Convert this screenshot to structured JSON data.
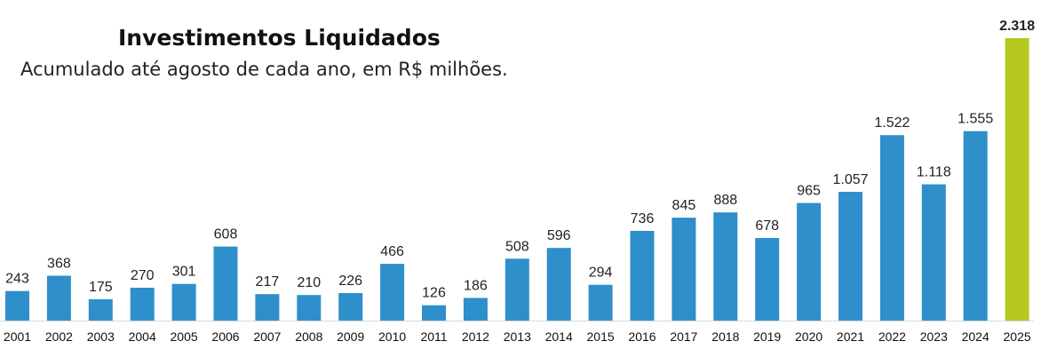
{
  "chart_data": {
    "type": "bar",
    "title": "Investimentos Liquidados",
    "subtitle": "Acumulado até agosto de cada ano, em R$ milhões.",
    "xlabel": "",
    "ylabel": "",
    "ylim": [
      0,
      2318
    ],
    "grid": false,
    "legend": "none",
    "categories": [
      "2001",
      "2002",
      "2003",
      "2004",
      "2005",
      "2006",
      "2007",
      "2008",
      "2009",
      "2010",
      "2011",
      "2012",
      "2013",
      "2014",
      "2015",
      "2016",
      "2017",
      "2018",
      "2019",
      "2020",
      "2021",
      "2022",
      "2023",
      "2024",
      "2025"
    ],
    "values": [
      243,
      368,
      175,
      270,
      301,
      608,
      217,
      210,
      226,
      466,
      126,
      186,
      508,
      596,
      294,
      736,
      845,
      888,
      678,
      965,
      1057,
      1522,
      1118,
      1555,
      2318
    ],
    "value_labels": [
      "243",
      "368",
      "175",
      "270",
      "301",
      "608",
      "217",
      "210",
      "226",
      "466",
      "126",
      "186",
      "508",
      "596",
      "294",
      "736",
      "845",
      "888",
      "678",
      "965",
      "1.057",
      "1.522",
      "1.118",
      "1.555",
      "2.318"
    ],
    "highlight_index": 24,
    "colors": {
      "bar": "#2e8fca",
      "highlight": "#b5c81f",
      "axis": "#d9d9d9"
    }
  }
}
